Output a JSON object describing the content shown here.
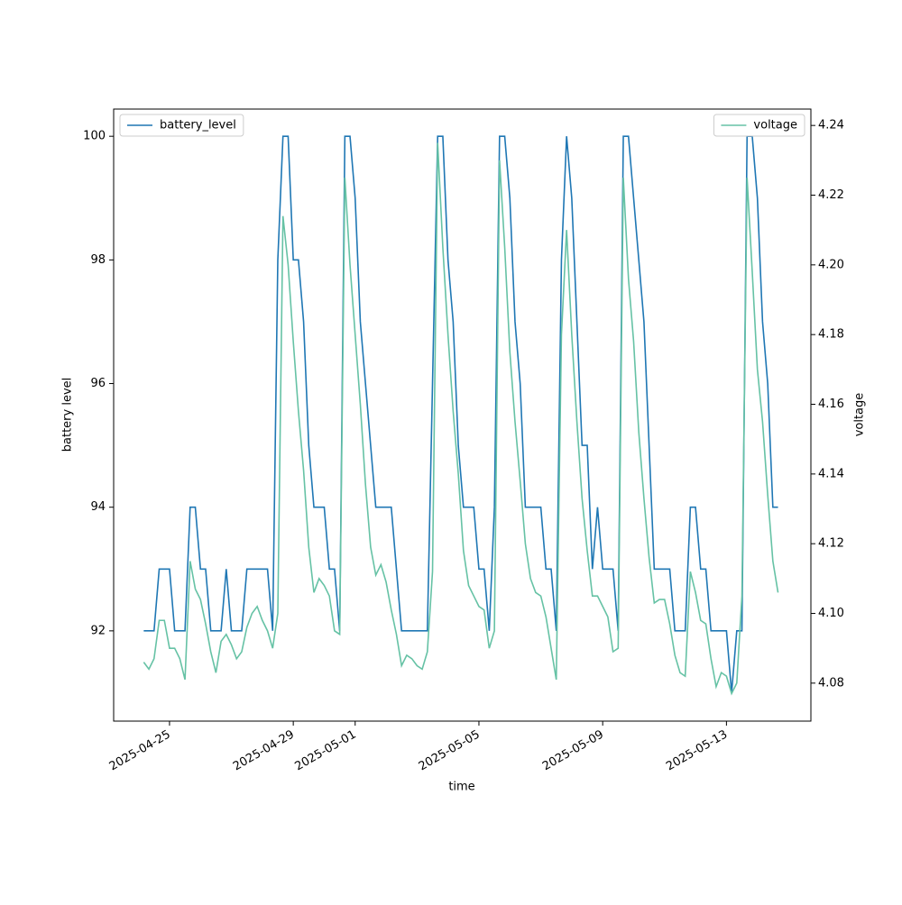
{
  "chart_data": {
    "type": "line",
    "x_label": "time",
    "y_label": "battery level",
    "y2_label": "voltage",
    "x": [
      "2025-04-24T04:00",
      "2025-04-24T08:00",
      "2025-04-24T12:00",
      "2025-04-24T16:00",
      "2025-04-24T20:00",
      "2025-04-25T00:00",
      "2025-04-25T04:00",
      "2025-04-25T08:00",
      "2025-04-25T12:00",
      "2025-04-25T16:00",
      "2025-04-25T20:00",
      "2025-04-26T00:00",
      "2025-04-26T04:00",
      "2025-04-26T08:00",
      "2025-04-26T12:00",
      "2025-04-26T16:00",
      "2025-04-26T20:00",
      "2025-04-27T00:00",
      "2025-04-27T04:00",
      "2025-04-27T08:00",
      "2025-04-27T12:00",
      "2025-04-27T16:00",
      "2025-04-27T20:00",
      "2025-04-28T00:00",
      "2025-04-28T04:00",
      "2025-04-28T08:00",
      "2025-04-28T12:00",
      "2025-04-28T16:00",
      "2025-04-28T20:00",
      "2025-04-29T00:00",
      "2025-04-29T04:00",
      "2025-04-29T08:00",
      "2025-04-29T12:00",
      "2025-04-29T16:00",
      "2025-04-29T20:00",
      "2025-04-30T00:00",
      "2025-04-30T04:00",
      "2025-04-30T08:00",
      "2025-04-30T12:00",
      "2025-04-30T16:00",
      "2025-04-30T20:00",
      "2025-05-01T00:00",
      "2025-05-01T04:00",
      "2025-05-01T08:00",
      "2025-05-01T12:00",
      "2025-05-01T16:00",
      "2025-05-01T20:00",
      "2025-05-02T00:00",
      "2025-05-02T04:00",
      "2025-05-02T08:00",
      "2025-05-02T12:00",
      "2025-05-02T16:00",
      "2025-05-02T20:00",
      "2025-05-03T00:00",
      "2025-05-03T04:00",
      "2025-05-03T08:00",
      "2025-05-03T12:00",
      "2025-05-03T16:00",
      "2025-05-03T20:00",
      "2025-05-04T00:00",
      "2025-05-04T04:00",
      "2025-05-04T08:00",
      "2025-05-04T12:00",
      "2025-05-04T16:00",
      "2025-05-04T20:00",
      "2025-05-05T00:00",
      "2025-05-05T04:00",
      "2025-05-05T08:00",
      "2025-05-05T12:00",
      "2025-05-05T16:00",
      "2025-05-05T20:00",
      "2025-05-06T00:00",
      "2025-05-06T04:00",
      "2025-05-06T08:00",
      "2025-05-06T12:00",
      "2025-05-06T16:00",
      "2025-05-06T20:00",
      "2025-05-07T00:00",
      "2025-05-07T04:00",
      "2025-05-07T08:00",
      "2025-05-07T12:00",
      "2025-05-07T16:00",
      "2025-05-07T20:00",
      "2025-05-08T00:00",
      "2025-05-08T04:00",
      "2025-05-08T08:00",
      "2025-05-08T12:00",
      "2025-05-08T16:00",
      "2025-05-08T20:00",
      "2025-05-09T00:00",
      "2025-05-09T04:00",
      "2025-05-09T08:00",
      "2025-05-09T12:00",
      "2025-05-09T16:00",
      "2025-05-09T20:00",
      "2025-05-10T00:00",
      "2025-05-10T04:00",
      "2025-05-10T08:00",
      "2025-05-10T12:00",
      "2025-05-10T16:00",
      "2025-05-10T20:00",
      "2025-05-11T00:00",
      "2025-05-11T04:00",
      "2025-05-11T08:00",
      "2025-05-11T12:00",
      "2025-05-11T16:00",
      "2025-05-11T20:00",
      "2025-05-12T00:00",
      "2025-05-12T04:00",
      "2025-05-12T08:00",
      "2025-05-12T12:00",
      "2025-05-12T16:00",
      "2025-05-12T20:00",
      "2025-05-13T00:00",
      "2025-05-13T04:00",
      "2025-05-13T08:00",
      "2025-05-13T12:00",
      "2025-05-13T16:00",
      "2025-05-13T20:00",
      "2025-05-14T00:00",
      "2025-05-14T04:00",
      "2025-05-14T08:00",
      "2025-05-14T12:00",
      "2025-05-14T16:00"
    ],
    "series": [
      {
        "name": "battery_level",
        "color": "#1f77b4",
        "axis": "y",
        "values": [
          92,
          92,
          92,
          93,
          93,
          93,
          92,
          92,
          92,
          94,
          94,
          93,
          93,
          92,
          92,
          92,
          93,
          92,
          92,
          92,
          93,
          93,
          93,
          93,
          93,
          92,
          98,
          100,
          100,
          98,
          98,
          97,
          95,
          94,
          94,
          94,
          93,
          93,
          92,
          100,
          100,
          99,
          97,
          96,
          95,
          94,
          94,
          94,
          94,
          93,
          92,
          92,
          92,
          92,
          92,
          92,
          96,
          100,
          100,
          98,
          97,
          95,
          94,
          94,
          94,
          93,
          93,
          92,
          94,
          100,
          100,
          99,
          97,
          96,
          94,
          94,
          94,
          94,
          93,
          93,
          92,
          98,
          100,
          99,
          97,
          95,
          95,
          93,
          94,
          93,
          93,
          93,
          92,
          100,
          100,
          99,
          98,
          97,
          95,
          93,
          93,
          93,
          93,
          92,
          92,
          92,
          94,
          94,
          93,
          93,
          92,
          92,
          92,
          92,
          91,
          92,
          92,
          100,
          100,
          99,
          97,
          96,
          94,
          94
        ]
      },
      {
        "name": "voltage",
        "color": "#66c2a5",
        "axis": "y2",
        "values": [
          4.086,
          4.084,
          4.087,
          4.098,
          4.098,
          4.09,
          4.09,
          4.087,
          4.081,
          4.115,
          4.107,
          4.104,
          4.097,
          4.089,
          4.083,
          4.092,
          4.094,
          4.091,
          4.087,
          4.089,
          4.096,
          4.1,
          4.102,
          4.098,
          4.095,
          4.09,
          4.1,
          4.214,
          4.2,
          4.178,
          4.158,
          4.141,
          4.119,
          4.106,
          4.11,
          4.108,
          4.105,
          4.095,
          4.094,
          4.225,
          4.2,
          4.18,
          4.16,
          4.137,
          4.119,
          4.111,
          4.114,
          4.109,
          4.101,
          4.094,
          4.085,
          4.088,
          4.087,
          4.085,
          4.084,
          4.089,
          4.112,
          4.235,
          4.205,
          4.18,
          4.158,
          4.14,
          4.118,
          4.108,
          4.105,
          4.102,
          4.101,
          4.09,
          4.095,
          4.23,
          4.205,
          4.175,
          4.155,
          4.138,
          4.12,
          4.11,
          4.106,
          4.105,
          4.099,
          4.09,
          4.081,
          4.18,
          4.21,
          4.18,
          4.155,
          4.133,
          4.118,
          4.105,
          4.105,
          4.102,
          4.099,
          4.089,
          4.09,
          4.225,
          4.196,
          4.178,
          4.152,
          4.133,
          4.116,
          4.103,
          4.104,
          4.104,
          4.097,
          4.088,
          4.083,
          4.082,
          4.112,
          4.106,
          4.098,
          4.097,
          4.087,
          4.079,
          4.083,
          4.082,
          4.077,
          4.08,
          4.105,
          4.225,
          4.198,
          4.17,
          4.155,
          4.134,
          4.115,
          4.106
        ]
      }
    ],
    "xlim": [
      "2025-04-23T04:40",
      "2025-05-15T17:30"
    ],
    "xticks": [
      "2025-04-25",
      "2025-04-29",
      "2025-05-01",
      "2025-05-05",
      "2025-05-09",
      "2025-05-13"
    ],
    "ylim": [
      90.54,
      100.44
    ],
    "yticks": [
      92,
      94,
      96,
      98,
      100
    ],
    "y2lim": [
      4.0691,
      4.2447
    ],
    "y2ticks": [
      4.08,
      {
        "value": 4.1,
        "label": "4.10"
      },
      4.12,
      4.14,
      4.16,
      4.18,
      {
        "value": 4.2,
        "label": "4.20"
      },
      4.22,
      4.24
    ],
    "legend": [
      "upper left",
      "upper right"
    ]
  }
}
